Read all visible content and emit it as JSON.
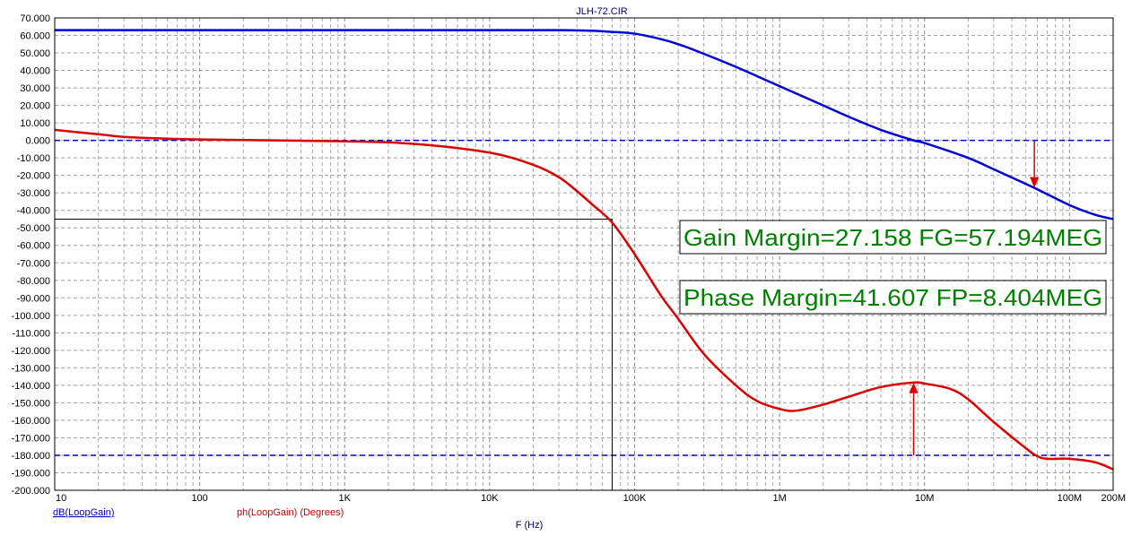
{
  "chart_data": {
    "type": "line",
    "title": "JLH-72.CIR",
    "xlabel": "F (Hz)",
    "x_scale": "log",
    "xlim": [
      10,
      200000000
    ],
    "ylim": [
      -200,
      70
    ],
    "y_ticks": [
      "70.000",
      "60.000",
      "50.000",
      "40.000",
      "30.000",
      "20.000",
      "10.000",
      "0.000",
      "-10.000",
      "-20.000",
      "-30.000",
      "-40.000",
      "-50.000",
      "-60.000",
      "-70.000",
      "-80.000",
      "-90.000",
      "-100.000",
      "-110.000",
      "-120.000",
      "-130.000",
      "-140.000",
      "-150.000",
      "-160.000",
      "-170.000",
      "-180.000",
      "-190.000",
      "-200.000"
    ],
    "x_ticks": [
      {
        "label": "10",
        "value": 10
      },
      {
        "label": "100",
        "value": 100
      },
      {
        "label": "1K",
        "value": 1000
      },
      {
        "label": "10K",
        "value": 10000
      },
      {
        "label": "100K",
        "value": 100000
      },
      {
        "label": "1M",
        "value": 1000000
      },
      {
        "label": "10M",
        "value": 10000000
      },
      {
        "label": "100M",
        "value": 100000000
      },
      {
        "label": "200M",
        "value": 200000000
      }
    ],
    "grid": true,
    "series": [
      {
        "name": "dB(LoopGain)",
        "color": "#0000dd",
        "points": [
          [
            10,
            63
          ],
          [
            1000,
            63
          ],
          [
            30000,
            63
          ],
          [
            70000,
            62
          ],
          [
            100000,
            61
          ],
          [
            150000,
            58
          ],
          [
            200000,
            55
          ],
          [
            300000,
            49.5
          ],
          [
            500000,
            42
          ],
          [
            1000000,
            31
          ],
          [
            2000000,
            20
          ],
          [
            3000000,
            13.5
          ],
          [
            5000000,
            6
          ],
          [
            8404000,
            0
          ],
          [
            10000000,
            -1.5
          ],
          [
            20000000,
            -10
          ],
          [
            30000000,
            -16.5
          ],
          [
            57194000,
            -27.158
          ],
          [
            100000000,
            -37
          ],
          [
            150000000,
            -42.5
          ],
          [
            200000000,
            -45
          ]
        ]
      },
      {
        "name": "ph(LoopGain) (Degrees)",
        "color": "#dd0000",
        "points": [
          [
            10,
            6
          ],
          [
            20,
            3.5
          ],
          [
            30,
            2
          ],
          [
            50,
            1.2
          ],
          [
            100,
            0.5
          ],
          [
            1000,
            -0.5
          ],
          [
            3000,
            -2
          ],
          [
            10000,
            -7
          ],
          [
            20000,
            -14
          ],
          [
            30000,
            -21
          ],
          [
            40000,
            -29
          ],
          [
            50000,
            -36
          ],
          [
            70000,
            -47
          ],
          [
            100000,
            -65
          ],
          [
            150000,
            -88
          ],
          [
            200000,
            -102
          ],
          [
            300000,
            -122
          ],
          [
            500000,
            -140
          ],
          [
            700000,
            -149
          ],
          [
            1000000,
            -153.5
          ],
          [
            1300000,
            -154.5
          ],
          [
            2000000,
            -151
          ],
          [
            3000000,
            -146.5
          ],
          [
            5000000,
            -141
          ],
          [
            8404000,
            -138.4
          ],
          [
            10000000,
            -139
          ],
          [
            15000000,
            -142
          ],
          [
            20000000,
            -148
          ],
          [
            30000000,
            -161
          ],
          [
            50000000,
            -176
          ],
          [
            60000000,
            -180.5
          ],
          [
            70000000,
            -182
          ],
          [
            100000000,
            -182
          ],
          [
            150000000,
            -184
          ],
          [
            200000000,
            -188
          ]
        ]
      }
    ],
    "reference_lines": [
      {
        "axis": "y",
        "value": 0,
        "style": "dashed",
        "color": "#0000dd"
      },
      {
        "axis": "y",
        "value": -180,
        "style": "dashed",
        "color": "#0000dd"
      }
    ],
    "cursor": {
      "x": 70000,
      "y": -45,
      "color": "#000000"
    },
    "markers": [
      {
        "x": 57194000,
        "from": 0,
        "to": -27.158,
        "color": "#dd0000"
      },
      {
        "x": 8404000,
        "from": -180,
        "to": -138.4,
        "color": "#dd0000"
      }
    ],
    "annotations": [
      {
        "text": "Gain Margin=27.158 FG=57.194MEG",
        "color": "#008000",
        "position": "right"
      },
      {
        "text": "Phase Margin=41.607 FP=8.404MEG",
        "color": "#008000",
        "position": "right"
      }
    ],
    "legend": [
      {
        "text": "dB(LoopGain)",
        "color": "#0000dd"
      },
      {
        "text": "ph(LoopGain) (Degrees)",
        "color": "#dd0000"
      }
    ]
  }
}
